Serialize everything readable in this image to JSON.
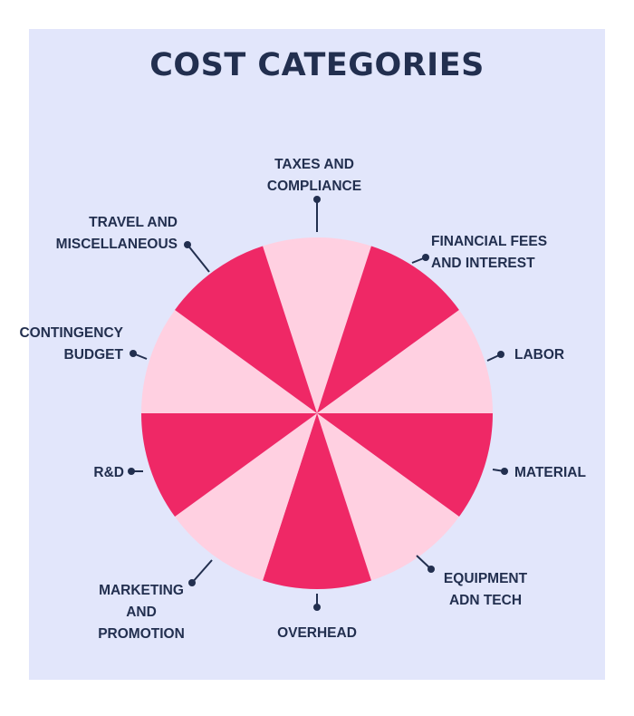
{
  "title": "COST CATEGORIES",
  "colors": {
    "background": "#e2e6fb",
    "segment_dark": "#ef2866",
    "segment_light": "#ffd0e1",
    "text": "#222f4f"
  },
  "categories": [
    {
      "lines": [
        "TAXES AND",
        "COMPLIANCE"
      ],
      "shade": "light"
    },
    {
      "lines": [
        "FINANCIAL FEES",
        "AND INTEREST"
      ],
      "shade": "dark"
    },
    {
      "lines": [
        "LABOR"
      ],
      "shade": "light"
    },
    {
      "lines": [
        "MATERIAL"
      ],
      "shade": "dark"
    },
    {
      "lines": [
        "EQUIPMENT",
        "ADN TECH"
      ],
      "shade": "light"
    },
    {
      "lines": [
        "OVERHEAD"
      ],
      "shade": "dark"
    },
    {
      "lines": [
        "MARKETING",
        "AND",
        "PROMOTION"
      ],
      "shade": "light"
    },
    {
      "lines": [
        "R&D"
      ],
      "shade": "dark"
    },
    {
      "lines": [
        "CONTINGENCY",
        "BUDGET"
      ],
      "shade": "light"
    },
    {
      "lines": [
        "TRAVEL AND",
        "MISCELLANEOUS"
      ],
      "shade": "dark"
    }
  ]
}
